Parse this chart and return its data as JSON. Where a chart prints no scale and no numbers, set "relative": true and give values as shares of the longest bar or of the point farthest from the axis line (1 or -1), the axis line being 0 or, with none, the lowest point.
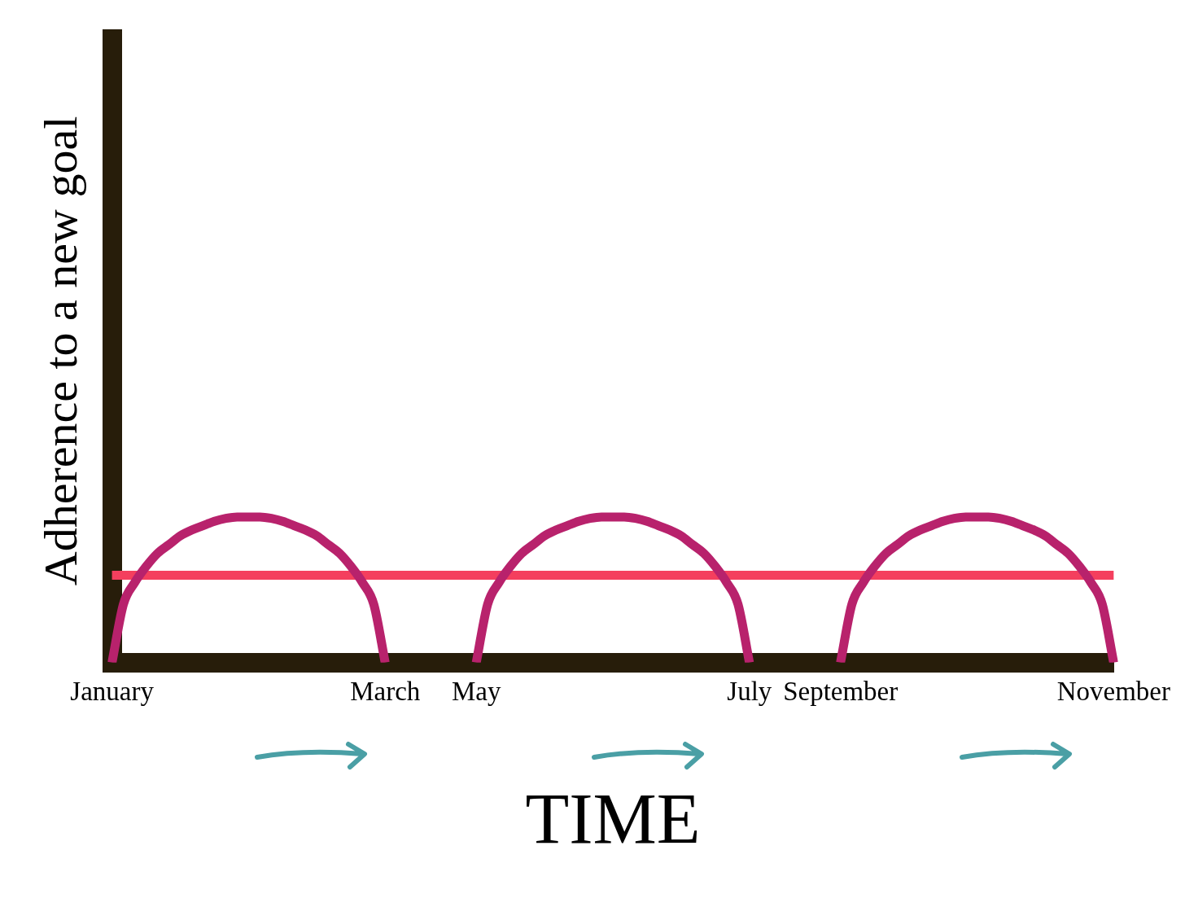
{
  "chart_data": {
    "type": "line",
    "relative": true,
    "xlabel": "TIME",
    "ylabel": "Adherence to a new goal",
    "categories": [
      "January",
      null,
      null,
      null,
      null,
      null,
      null,
      null,
      null,
      null,
      null,
      null,
      null,
      null,
      null,
      null,
      null,
      null,
      null,
      null,
      null,
      null,
      null,
      null,
      "March",
      null,
      null,
      null,
      null,
      null,
      null,
      null,
      "May",
      null,
      null,
      null,
      null,
      null,
      null,
      null,
      null,
      null,
      null,
      null,
      null,
      null,
      null,
      null,
      null,
      null,
      null,
      null,
      null,
      null,
      null,
      null,
      "July",
      null,
      null,
      null,
      null,
      null,
      null,
      null,
      "September",
      null,
      null,
      null,
      null,
      null,
      null,
      null,
      null,
      null,
      null,
      null,
      null,
      null,
      null,
      null,
      null,
      null,
      null,
      null,
      null,
      null,
      null,
      null,
      "November"
    ],
    "series": [
      {
        "color": "#b8226c",
        "values": [
          0,
          0.4,
          0.55,
          0.66,
          0.75,
          0.81,
          0.87,
          0.91,
          0.94,
          0.97,
          0.99,
          1,
          1,
          1,
          0.99,
          0.97,
          0.94,
          0.91,
          0.87,
          0.81,
          0.75,
          0.66,
          0.55,
          0.4,
          0,
          null,
          null,
          null,
          null,
          null,
          null,
          null,
          0,
          0.4,
          0.55,
          0.66,
          0.75,
          0.81,
          0.87,
          0.91,
          0.94,
          0.97,
          0.99,
          1,
          1,
          1,
          0.99,
          0.97,
          0.94,
          0.91,
          0.87,
          0.81,
          0.75,
          0.66,
          0.55,
          0.4,
          0,
          null,
          null,
          null,
          null,
          null,
          null,
          null,
          0,
          0.4,
          0.55,
          0.66,
          0.75,
          0.81,
          0.87,
          0.91,
          0.94,
          0.97,
          0.99,
          1,
          1,
          1,
          0.99,
          0.97,
          0.94,
          0.91,
          0.87,
          0.81,
          0.75,
          0.66,
          0.55,
          0.4,
          0
        ]
      },
      {
        "color": "#f43f5e",
        "values": [
          0.6,
          0.6,
          0.6,
          0.6,
          0.6,
          0.6,
          0.6,
          0.6,
          0.6,
          0.6,
          0.6,
          0.6,
          0.6,
          0.6,
          0.6,
          0.6,
          0.6,
          0.6,
          0.6,
          0.6,
          0.6,
          0.6,
          0.6,
          0.6,
          0.6,
          0.6,
          0.6,
          0.6,
          0.6,
          0.6,
          0.6,
          0.6,
          0.6,
          0.6,
          0.6,
          0.6,
          0.6,
          0.6,
          0.6,
          0.6,
          0.6,
          0.6,
          0.6,
          0.6,
          0.6,
          0.6,
          0.6,
          0.6,
          0.6,
          0.6,
          0.6,
          0.6,
          0.6,
          0.6,
          0.6,
          0.6,
          0.6,
          0.6,
          0.6,
          0.6,
          0.6,
          0.6,
          0.6,
          0.6,
          0.6,
          0.6,
          0.6,
          0.6,
          0.6,
          0.6,
          0.6,
          0.6,
          0.6,
          0.6,
          0.6,
          0.6,
          0.6,
          0.6,
          0.6,
          0.6,
          0.6,
          0.6,
          0.6,
          0.6,
          0.6,
          0.6,
          0.6,
          0.6,
          0.6
        ]
      }
    ],
    "grid": false,
    "legend": false,
    "marker": "none",
    "line_style": "solid"
  }
}
